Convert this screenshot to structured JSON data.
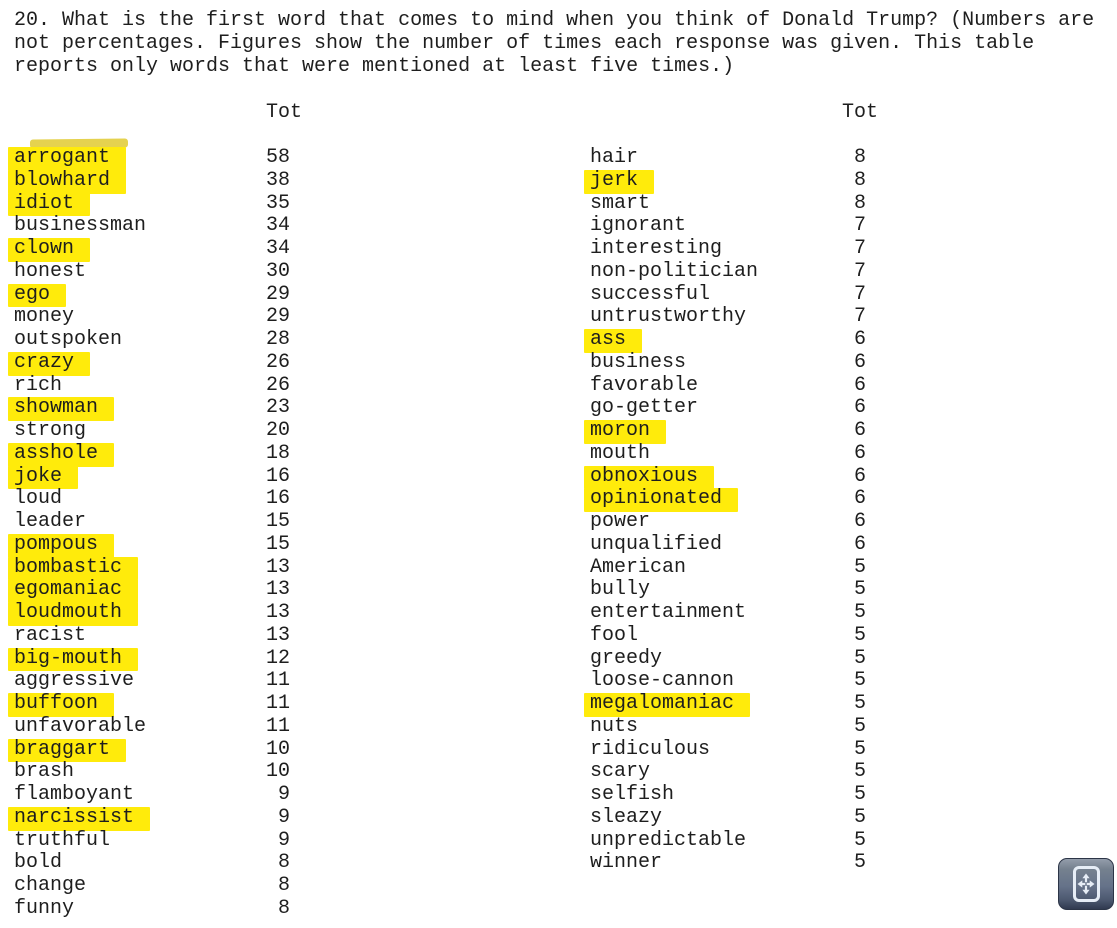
{
  "page": {
    "question": "20. What is the first word that comes to mind when you think of Donald Trump? (Numbers are not percentages. Figures show the number of times each response was given. This table reports only words that were mentioned at least five times.)"
  },
  "table": {
    "column_header": "Tot",
    "left_column": [
      {
        "word": "arrogant",
        "count": 58,
        "highlighted": true
      },
      {
        "word": "blowhard",
        "count": 38,
        "highlighted": true
      },
      {
        "word": "idiot",
        "count": 35,
        "highlighted": true
      },
      {
        "word": "businessman",
        "count": 34,
        "highlighted": false
      },
      {
        "word": "clown",
        "count": 34,
        "highlighted": true
      },
      {
        "word": "honest",
        "count": 30,
        "highlighted": false
      },
      {
        "word": "ego",
        "count": 29,
        "highlighted": true
      },
      {
        "word": "money",
        "count": 29,
        "highlighted": false
      },
      {
        "word": "outspoken",
        "count": 28,
        "highlighted": false
      },
      {
        "word": "crazy",
        "count": 26,
        "highlighted": true
      },
      {
        "word": "rich",
        "count": 26,
        "highlighted": false
      },
      {
        "word": "showman",
        "count": 23,
        "highlighted": true
      },
      {
        "word": "strong",
        "count": 20,
        "highlighted": false
      },
      {
        "word": "asshole",
        "count": 18,
        "highlighted": true
      },
      {
        "word": "joke",
        "count": 16,
        "highlighted": true
      },
      {
        "word": "loud",
        "count": 16,
        "highlighted": false
      },
      {
        "word": "leader",
        "count": 15,
        "highlighted": false
      },
      {
        "word": "pompous",
        "count": 15,
        "highlighted": true
      },
      {
        "word": "bombastic",
        "count": 13,
        "highlighted": true
      },
      {
        "word": "egomaniac",
        "count": 13,
        "highlighted": true
      },
      {
        "word": "loudmouth",
        "count": 13,
        "highlighted": true
      },
      {
        "word": "racist",
        "count": 13,
        "highlighted": false
      },
      {
        "word": "big-mouth",
        "count": 12,
        "highlighted": true
      },
      {
        "word": "aggressive",
        "count": 11,
        "highlighted": false
      },
      {
        "word": "buffoon",
        "count": 11,
        "highlighted": true
      },
      {
        "word": "unfavorable",
        "count": 11,
        "highlighted": false
      },
      {
        "word": "braggart",
        "count": 10,
        "highlighted": true
      },
      {
        "word": "brash",
        "count": 10,
        "highlighted": false
      },
      {
        "word": "flamboyant",
        "count": 9,
        "highlighted": false
      },
      {
        "word": "narcissist",
        "count": 9,
        "highlighted": true
      },
      {
        "word": "truthful",
        "count": 9,
        "highlighted": false
      },
      {
        "word": "bold",
        "count": 8,
        "highlighted": false
      },
      {
        "word": "change",
        "count": 8,
        "highlighted": false
      },
      {
        "word": "funny",
        "count": 8,
        "highlighted": false
      }
    ],
    "right_column": [
      {
        "word": "hair",
        "count": 8,
        "highlighted": false
      },
      {
        "word": "jerk",
        "count": 8,
        "highlighted": true
      },
      {
        "word": "smart",
        "count": 8,
        "highlighted": false
      },
      {
        "word": "ignorant",
        "count": 7,
        "highlighted": false
      },
      {
        "word": "interesting",
        "count": 7,
        "highlighted": false
      },
      {
        "word": "non-politician",
        "count": 7,
        "highlighted": false
      },
      {
        "word": "successful",
        "count": 7,
        "highlighted": false
      },
      {
        "word": "untrustworthy",
        "count": 7,
        "highlighted": false
      },
      {
        "word": "ass",
        "count": 6,
        "highlighted": true
      },
      {
        "word": "business",
        "count": 6,
        "highlighted": false
      },
      {
        "word": "favorable",
        "count": 6,
        "highlighted": false
      },
      {
        "word": "go-getter",
        "count": 6,
        "highlighted": false
      },
      {
        "word": "moron",
        "count": 6,
        "highlighted": true
      },
      {
        "word": "mouth",
        "count": 6,
        "highlighted": false
      },
      {
        "word": "obnoxious",
        "count": 6,
        "highlighted": true
      },
      {
        "word": "opinionated",
        "count": 6,
        "highlighted": true
      },
      {
        "word": "power",
        "count": 6,
        "highlighted": false
      },
      {
        "word": "unqualified",
        "count": 6,
        "highlighted": false
      },
      {
        "word": "American",
        "count": 5,
        "highlighted": false
      },
      {
        "word": "bully",
        "count": 5,
        "highlighted": false
      },
      {
        "word": "entertainment",
        "count": 5,
        "highlighted": false
      },
      {
        "word": "fool",
        "count": 5,
        "highlighted": false
      },
      {
        "word": "greedy",
        "count": 5,
        "highlighted": false
      },
      {
        "word": "loose-cannon",
        "count": 5,
        "highlighted": false
      },
      {
        "word": "megalomaniac",
        "count": 5,
        "highlighted": true
      },
      {
        "word": "nuts",
        "count": 5,
        "highlighted": false
      },
      {
        "word": "ridiculous",
        "count": 5,
        "highlighted": false
      },
      {
        "word": "scary",
        "count": 5,
        "highlighted": false
      },
      {
        "word": "selfish",
        "count": 5,
        "highlighted": false
      },
      {
        "word": "sleazy",
        "count": 5,
        "highlighted": false
      },
      {
        "word": "unpredictable",
        "count": 5,
        "highlighted": false
      },
      {
        "word": "winner",
        "count": 5,
        "highlighted": false
      }
    ]
  },
  "colors": {
    "highlight": "#ffeb0b",
    "text": "#1e1e1e",
    "button_face": "#65728a",
    "button_glyph": "#e6edf6"
  },
  "viewer": {
    "fit_page_button": {
      "icon": "expand-arrows-icon"
    }
  }
}
